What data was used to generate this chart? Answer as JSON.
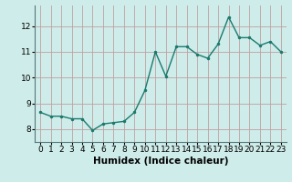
{
  "x": [
    0,
    1,
    2,
    3,
    4,
    5,
    6,
    7,
    8,
    9,
    10,
    11,
    12,
    13,
    14,
    15,
    16,
    17,
    18,
    19,
    20,
    21,
    22,
    23
  ],
  "y": [
    8.65,
    8.5,
    8.5,
    8.4,
    8.4,
    7.95,
    8.2,
    8.25,
    8.3,
    8.65,
    9.5,
    11.0,
    10.05,
    11.2,
    11.2,
    10.9,
    10.75,
    11.3,
    12.35,
    11.55,
    11.55,
    11.25,
    11.4,
    11.0
  ],
  "line_color": "#1a7a6e",
  "marker": ".",
  "marker_size": 3,
  "bg_color": "#ceecea",
  "grid_color": "#c0a0a0",
  "xlabel": "Humidex (Indice chaleur)",
  "xlim": [
    -0.5,
    23.5
  ],
  "ylim": [
    7.5,
    12.8
  ],
  "yticks": [
    8,
    9,
    10,
    11,
    12
  ],
  "xticks": [
    0,
    1,
    2,
    3,
    4,
    5,
    6,
    7,
    8,
    9,
    10,
    11,
    12,
    13,
    14,
    15,
    16,
    17,
    18,
    19,
    20,
    21,
    22,
    23
  ],
  "tick_label_fontsize": 6.5,
  "xlabel_fontsize": 7.5
}
